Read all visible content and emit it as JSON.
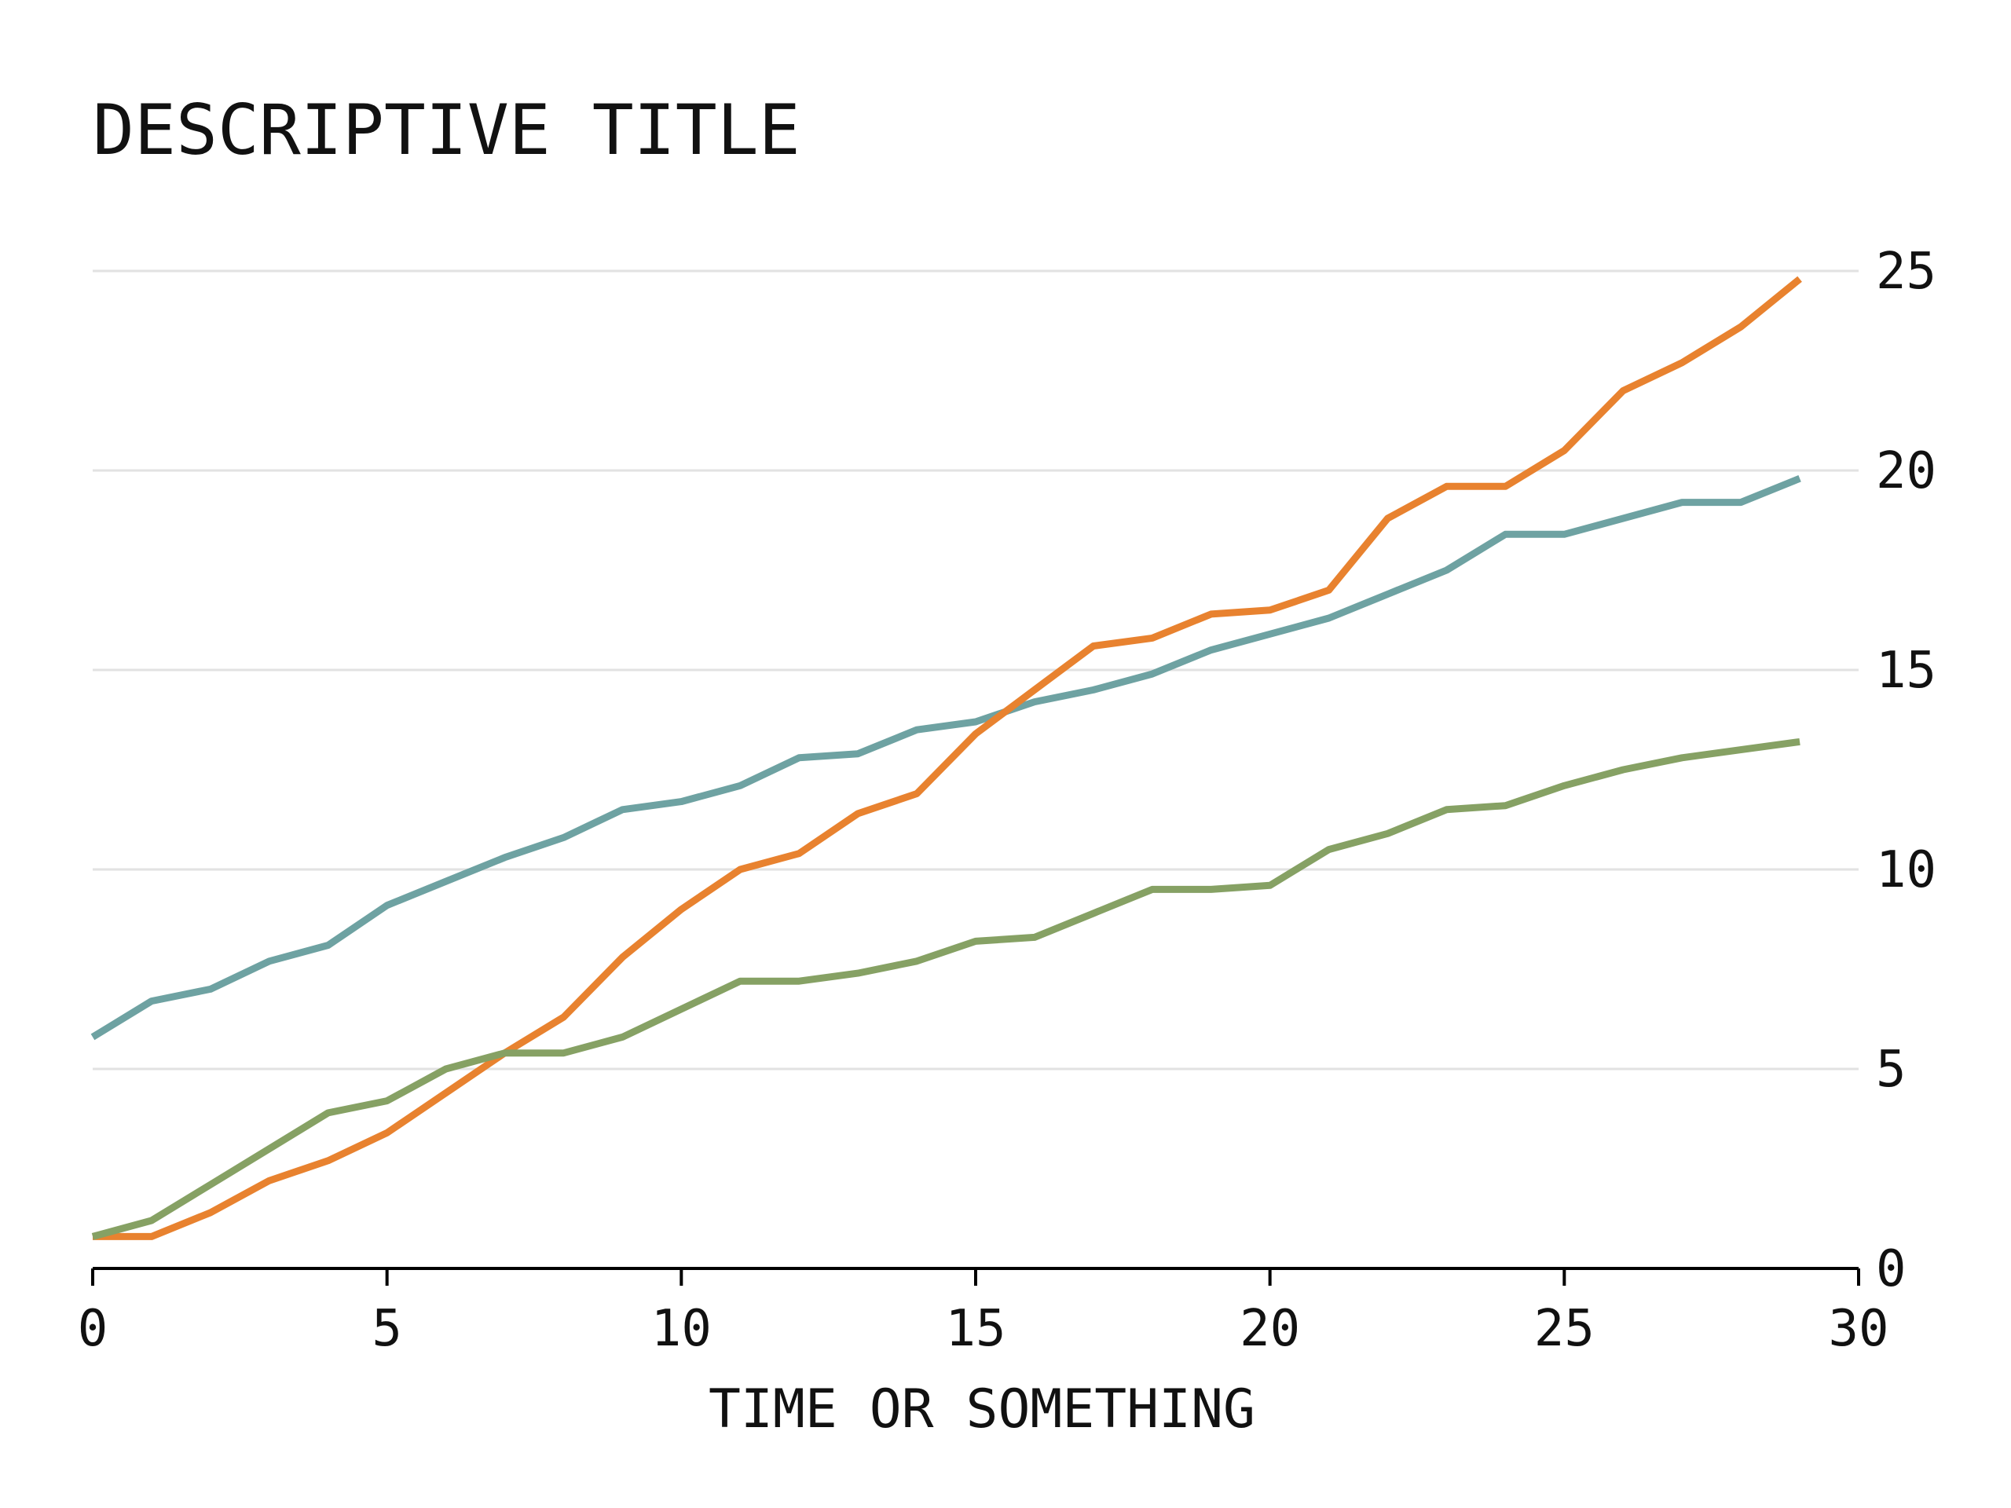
{
  "chart_data": {
    "type": "line",
    "title": "DESCRIPTIVE TITLE",
    "xlabel": "TIME OR SOMETHING",
    "ylabel": "",
    "xlim": [
      0,
      30
    ],
    "ylim": [
      0,
      25
    ],
    "x_ticks": [
      "0",
      "5",
      "10",
      "15",
      "20",
      "25",
      "30"
    ],
    "y_ticks": [
      "0",
      "5",
      "10",
      "15",
      "20",
      "25"
    ],
    "y_axis_position": "right",
    "grid": "horizontal",
    "legend": "none",
    "x": [
      0,
      1,
      2,
      3,
      4,
      5,
      6,
      7,
      8,
      9,
      10,
      11,
      12,
      13,
      14,
      15,
      16,
      17,
      18,
      19,
      20,
      21,
      22,
      23,
      24,
      25,
      26,
      27,
      28,
      29
    ],
    "series": [
      {
        "color": "#6ea2a2",
        "values": [
          5.8,
          6.7,
          7.0,
          7.7,
          8.1,
          9.1,
          9.7,
          10.3,
          10.8,
          11.5,
          11.7,
          12.1,
          12.8,
          12.9,
          13.5,
          13.7,
          14.2,
          14.5,
          14.9,
          15.5,
          15.9,
          16.3,
          16.9,
          17.5,
          18.4,
          18.4,
          18.8,
          19.2,
          19.2,
          19.8
        ]
      },
      {
        "color": "#e8822f",
        "values": [
          0.8,
          0.8,
          1.4,
          2.2,
          2.7,
          3.4,
          4.4,
          5.4,
          6.3,
          7.8,
          9.0,
          10.0,
          10.4,
          11.4,
          11.9,
          13.4,
          14.5,
          15.6,
          15.8,
          16.4,
          16.5,
          17.0,
          18.8,
          19.6,
          19.6,
          20.5,
          22.0,
          22.7,
          23.6,
          24.8
        ]
      },
      {
        "color": "#86a164",
        "values": [
          0.8,
          1.2,
          2.1,
          3.0,
          3.9,
          4.2,
          5.0,
          5.4,
          5.4,
          5.8,
          6.5,
          7.2,
          7.2,
          7.4,
          7.7,
          8.2,
          8.3,
          8.9,
          9.5,
          9.5,
          9.6,
          10.5,
          10.9,
          11.5,
          11.6,
          12.1,
          12.5,
          12.8,
          13.0,
          13.2
        ]
      }
    ]
  }
}
